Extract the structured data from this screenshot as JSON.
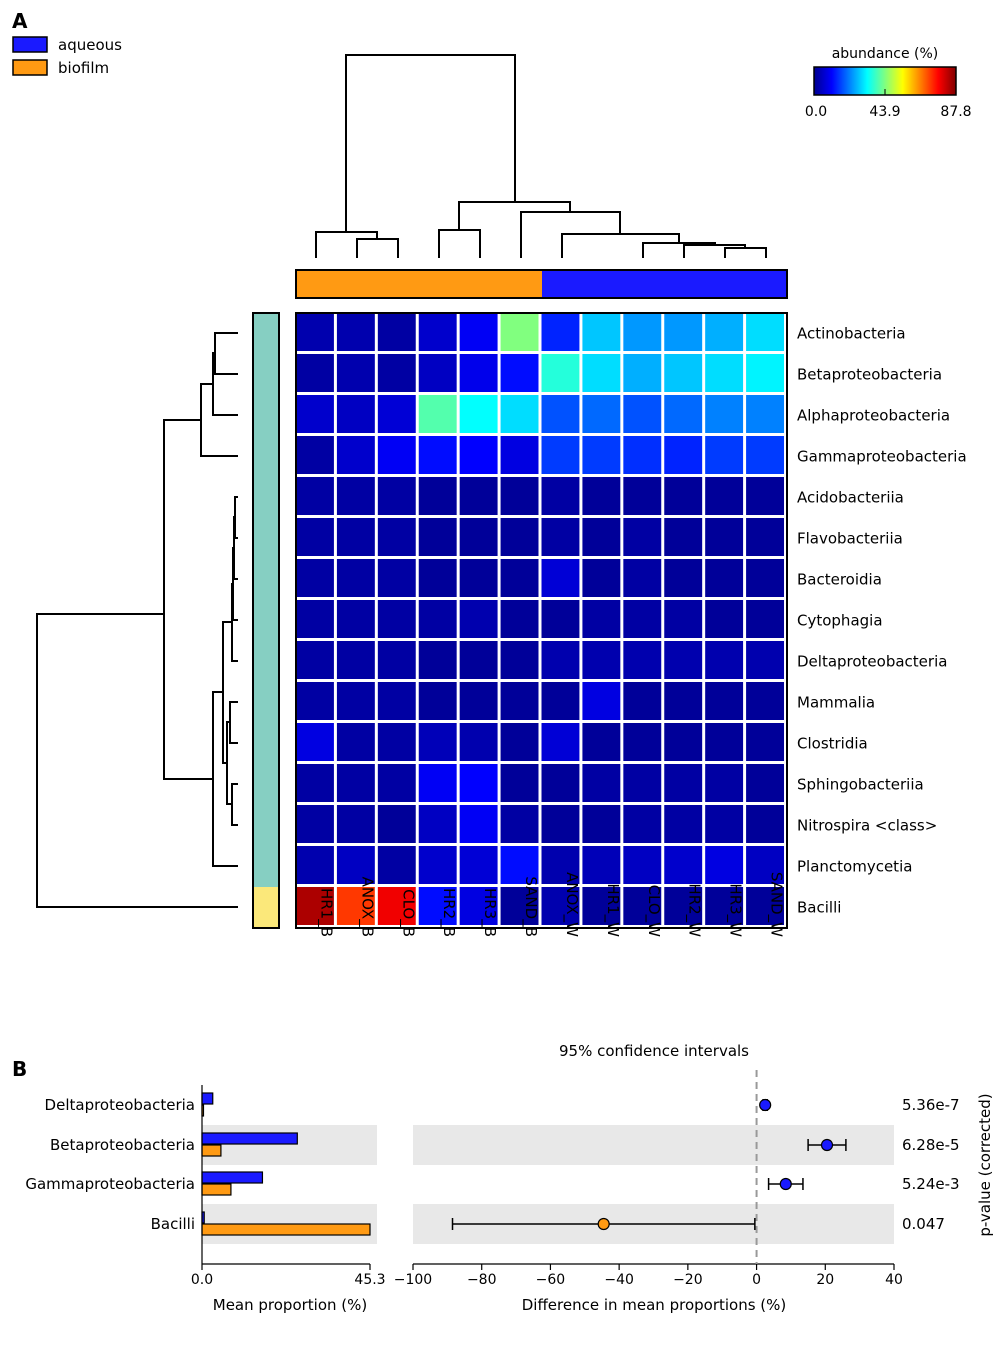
{
  "panel_a": {
    "label": "A",
    "legend": [
      {
        "name": "aqueous",
        "color": "#1a1aff"
      },
      {
        "name": "biofilm",
        "color": "#ff9a13"
      }
    ],
    "colorbar": {
      "title": "abundance (%)",
      "ticks": [
        "0.0",
        "43.9",
        "87.8"
      ],
      "stops": [
        "#00008f",
        "#0000ff",
        "#0080ff",
        "#00ffff",
        "#80ff80",
        "#ffff00",
        "#ff8000",
        "#ff0000",
        "#800000"
      ]
    },
    "row_group_colors": {
      "main": "#86cfc2",
      "bacilli": "#fbe87a"
    }
  },
  "panel_b": {
    "label": "B",
    "ci_title": "95% confidence intervals",
    "left_xlabel": "Mean proportion (%)",
    "left_ticks": [
      "0.0",
      "45.3"
    ],
    "right_xlabel": "Difference in mean proportions (%)",
    "right_ticks": [
      "−100",
      "−80",
      "−60",
      "−40",
      "−20",
      "0",
      "20",
      "40"
    ],
    "pvalue_label": "p-value (corrected)"
  },
  "chart_data": [
    {
      "type": "heatmap",
      "title": "",
      "colorbar_label": "abundance (%)",
      "value_range": [
        0.0,
        87.8
      ],
      "columns": [
        "HR1_B",
        "ANOX_B",
        "CLO_B",
        "HR2_B",
        "HR3_B",
        "SAND_B",
        "ANOX_W",
        "HR1_W",
        "CLO_W",
        "HR2_W",
        "HR3_W",
        "SAND_W"
      ],
      "column_groups": [
        "biofilm",
        "biofilm",
        "biofilm",
        "biofilm",
        "biofilm",
        "biofilm",
        "aqueous",
        "aqueous",
        "aqueous",
        "aqueous",
        "aqueous",
        "aqueous"
      ],
      "rows": [
        "Actinobacteria",
        "Betaproteobacteria",
        "Alphaproteobacteria",
        "Gammaproteobacteria",
        "Acidobacteriia",
        "Flavobacteriia",
        "Bacteroidia",
        "Cytophagia",
        "Deltaproteobacteria",
        "Mammalia",
        "Clostridia",
        "Sphingobacteriia",
        "Nitrospira <class>",
        "Planctomycetia",
        "Bacilli"
      ],
      "values": [
        [
          3,
          3,
          2,
          6,
          10,
          44,
          14,
          28,
          24,
          24,
          26,
          30
        ],
        [
          2,
          3,
          2,
          5,
          9,
          12,
          36,
          30,
          26,
          28,
          30,
          32
        ],
        [
          6,
          5,
          7,
          40,
          33,
          30,
          18,
          20,
          18,
          20,
          22,
          22
        ],
        [
          2,
          6,
          10,
          12,
          11,
          8,
          16,
          16,
          15,
          14,
          16,
          16
        ],
        [
          2,
          2,
          2,
          1,
          1,
          1,
          2,
          1,
          1,
          1,
          1,
          1
        ],
        [
          2,
          2,
          2,
          1,
          1,
          1,
          2,
          1,
          2,
          1,
          1,
          1
        ],
        [
          2,
          2,
          2,
          1,
          1,
          1,
          7,
          1,
          2,
          1,
          1,
          1
        ],
        [
          2,
          2,
          2,
          2,
          3,
          1,
          1,
          2,
          2,
          2,
          1,
          1
        ],
        [
          2,
          2,
          2,
          1,
          1,
          1,
          3,
          3,
          3,
          3,
          3,
          3
        ],
        [
          2,
          2,
          2,
          1,
          1,
          1,
          1,
          8,
          1,
          1,
          1,
          1
        ],
        [
          8,
          2,
          2,
          4,
          3,
          1,
          7,
          1,
          1,
          1,
          1,
          1
        ],
        [
          2,
          2,
          2,
          10,
          11,
          1,
          1,
          2,
          2,
          2,
          2,
          1
        ],
        [
          2,
          2,
          1,
          5,
          10,
          2,
          1,
          1,
          2,
          2,
          2,
          1
        ],
        [
          3,
          5,
          2,
          6,
          7,
          12,
          3,
          4,
          5,
          6,
          8,
          5
        ],
        [
          84,
          72,
          78,
          12,
          8,
          1,
          3,
          1,
          1,
          1,
          1,
          1
        ]
      ]
    },
    {
      "type": "bar",
      "title": "",
      "xlabel": "Mean proportion (%)",
      "xlim": [
        0,
        45.3
      ],
      "categories": [
        "Deltaproteobacteria",
        "Betaproteobacteria",
        "Gammaproteobacteria",
        "Bacilli"
      ],
      "series": [
        {
          "name": "aqueous",
          "values": [
            2.9,
            25.7,
            16.3,
            0.6
          ]
        },
        {
          "name": "biofilm",
          "values": [
            0.4,
            5.1,
            7.8,
            45.3
          ]
        }
      ]
    },
    {
      "type": "scatter",
      "title": "",
      "xlabel": "Difference in mean proportions (%)",
      "xlim": [
        -100,
        40
      ],
      "ci_title": "95% confidence intervals",
      "categories": [
        "Deltaproteobacteria",
        "Betaproteobacteria",
        "Gammaproteobacteria",
        "Bacilli"
      ],
      "difference": [
        2.5,
        20.5,
        8.5,
        -44.5
      ],
      "ci_low": [
        1.9,
        15.0,
        3.5,
        -88.5
      ],
      "ci_high": [
        3.1,
        26.0,
        13.5,
        -0.5
      ],
      "colors": [
        "#1a1aff",
        "#1a1aff",
        "#1a1aff",
        "#ff9a13"
      ],
      "pvalue_label": "p-value (corrected)",
      "pvalues": [
        "5.36e-7",
        "6.28e-5",
        "5.24e-3",
        "0.047"
      ]
    }
  ]
}
